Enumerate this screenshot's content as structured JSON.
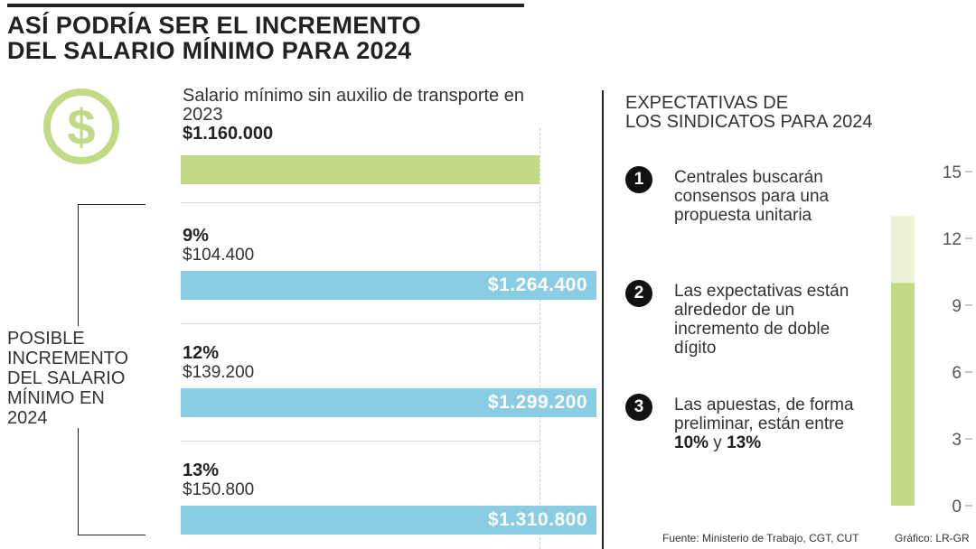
{
  "title": {
    "line1": "ASÍ PODRÍA SER EL INCREMENTO",
    "line2": "DEL SALARIO MÍNIMO PARA 2024"
  },
  "icons": {
    "coin": "dollar-coin-icon"
  },
  "colors": {
    "base_bar": "#c2d985",
    "increment_bar": "#89cce4",
    "gauge_low": "#c2d985",
    "gauge_high": "#eef2d4"
  },
  "base": {
    "label": "Salario mínimo sin auxilio de transporte en 2023",
    "value": "$1.160.000",
    "amount": 1160000
  },
  "side_label": {
    "lines": [
      "POSIBLE",
      "INCREMENTO",
      "DEL SALARIO",
      "MÍNIMO EN",
      "2024"
    ]
  },
  "increments": [
    {
      "pct": "9%",
      "amount": "$104.400",
      "total": "$1.264.400"
    },
    {
      "pct": "12%",
      "amount": "$139.200",
      "total": "$1.299.200"
    },
    {
      "pct": "13%",
      "amount": "$150.800",
      "total": "$1.310.800"
    }
  ],
  "expectations": {
    "title_lines": [
      "EXPECTATIVAS DE",
      "LOS SINDICATOS PARA 2024"
    ],
    "items": [
      {
        "num": "1",
        "text": "Centrales buscarán consensos para una propuesta unitaria"
      },
      {
        "num": "2",
        "text": "Las expectativas están alrededor de un incremento de doble dígito"
      },
      {
        "num": "3",
        "text_a": "Las apuestas, de forma preliminar, están entre ",
        "bold_a": "10%",
        "text_b": " y ",
        "bold_b": "13%"
      }
    ]
  },
  "footer": {
    "source": "Fuente: Ministerio de Trabajo, CGT, CUT",
    "credit": "Gráfico: LR-GR"
  },
  "chart_data": [
    {
      "type": "bar",
      "categories": [
        "2023",
        "9%",
        "12%",
        "13%"
      ],
      "values": [
        1160000,
        1264400,
        1299200,
        1310800
      ],
      "data_labels": [
        "$1.160.000",
        "$1.264.400",
        "$1.299.200",
        "$1.310.800"
      ],
      "increments": [
        null,
        104400,
        139200,
        150800
      ]
    },
    {
      "type": "bar",
      "ylim": [
        0,
        15
      ],
      "yticks": [
        0,
        3,
        6,
        9,
        12,
        15
      ],
      "range_low": 10,
      "range_high": 13
    }
  ]
}
